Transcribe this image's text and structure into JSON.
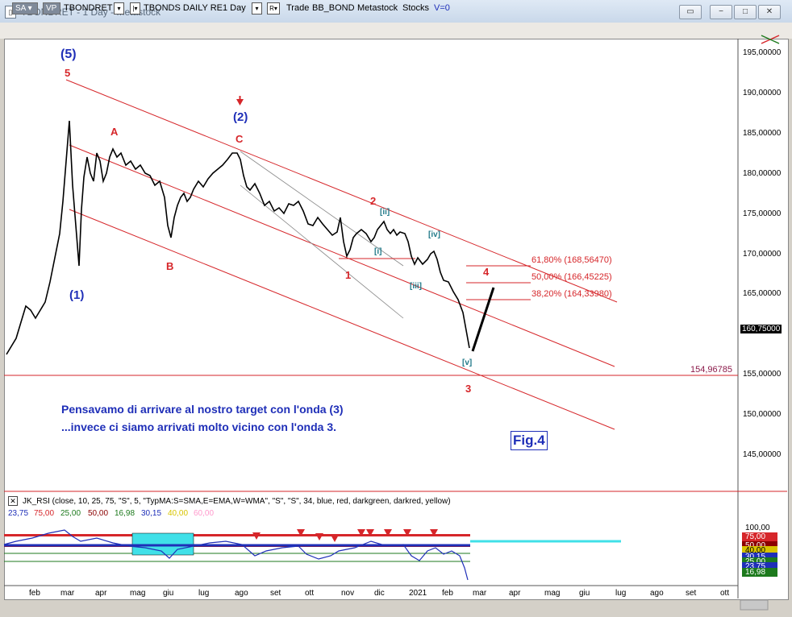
{
  "window": {
    "title": "TBONDRET - 1 Day - Metastock",
    "buttons": [
      "▭",
      "−",
      "□",
      "✕"
    ]
  },
  "toolbar": {
    "sa": "SA",
    "vp": "VP",
    "symbol": "TBONDRET",
    "security_name": "TBONDS DAILY RE",
    "period": "1 Day",
    "r_label": "R",
    "trade": "Trade",
    "source": "BB_BOND",
    "metastock": "Metastock",
    "stocks": "Stocks",
    "v": "V=0"
  },
  "price_axis": {
    "ticks": [
      "195,00000",
      "190,00000",
      "185,00000",
      "180,00000",
      "175,00000",
      "170,00000",
      "165,00000",
      "160,75000",
      "155,00000",
      "150,00000",
      "145,00000"
    ],
    "current_price": "160,75000",
    "hline_label": "154,96785"
  },
  "annotations": {
    "wave5_blue": "(5)",
    "wave5_red": "5",
    "A": "A",
    "B": "B",
    "C": "C",
    "wave1_blue": "(1)",
    "wave2_blue": "(2)",
    "wave1_red": "1",
    "wave2_red": "2",
    "wave3_red": "3",
    "wave4_red": "4",
    "ii": "[ii]",
    "i": "[i]",
    "iii": "[iii]",
    "iv": "[iv]",
    "v": "[v]",
    "fig": "Fig.4",
    "comment_line1": "Pensavamo di arrivare al nostro target con l'onda (3)",
    "comment_line2": "...invece ci siamo arrivati molto vicino con l'onda 3."
  },
  "fib_levels": [
    {
      "label": "61,80% (168,56470)"
    },
    {
      "label": "50,00% (166,45225)"
    },
    {
      "label": "38,20% (164,33980)"
    }
  ],
  "rsi": {
    "title": "JK_RSI   (close,  10,  25,  75,  \"S\",  5,  \"TypMA:S=SMA,E=EMA,W=WMA\",  \"S\",  \"S\",  34,  blue,  red,  darkgreen,  darkred,  yellow)",
    "values": [
      {
        "text": "23,75",
        "color": "#1f2fb8"
      },
      {
        "text": "75,00",
        "color": "#d6262a"
      },
      {
        "text": "25,00",
        "color": "#1d7a1d"
      },
      {
        "text": "50,00",
        "color": "#8b0000"
      },
      {
        "text": "16,98",
        "color": "#1d7a1d"
      },
      {
        "text": "30,15",
        "color": "#1f2fb8"
      },
      {
        "text": "40,00",
        "color": "#d8c400"
      },
      {
        "text": "60,00",
        "color": "#ff99cc"
      }
    ],
    "axis": [
      "100,00",
      "75,00",
      "50,00",
      "40,00",
      "30,15",
      "25,00",
      "23,75",
      "16,98"
    ]
  },
  "months": [
    "feb",
    "mar",
    "apr",
    "mag",
    "giu",
    "lug",
    "ago",
    "set",
    "ott",
    "nov",
    "dic",
    "2021",
    "feb",
    "mar",
    "apr",
    "mag",
    "giu",
    "lug",
    "ago",
    "set",
    "ott"
  ],
  "colors": {
    "channel": "#d6262a",
    "price_bars": "#000000",
    "rsi_main": "#1f2fb8",
    "rsi_box": "#40e0e8"
  }
}
